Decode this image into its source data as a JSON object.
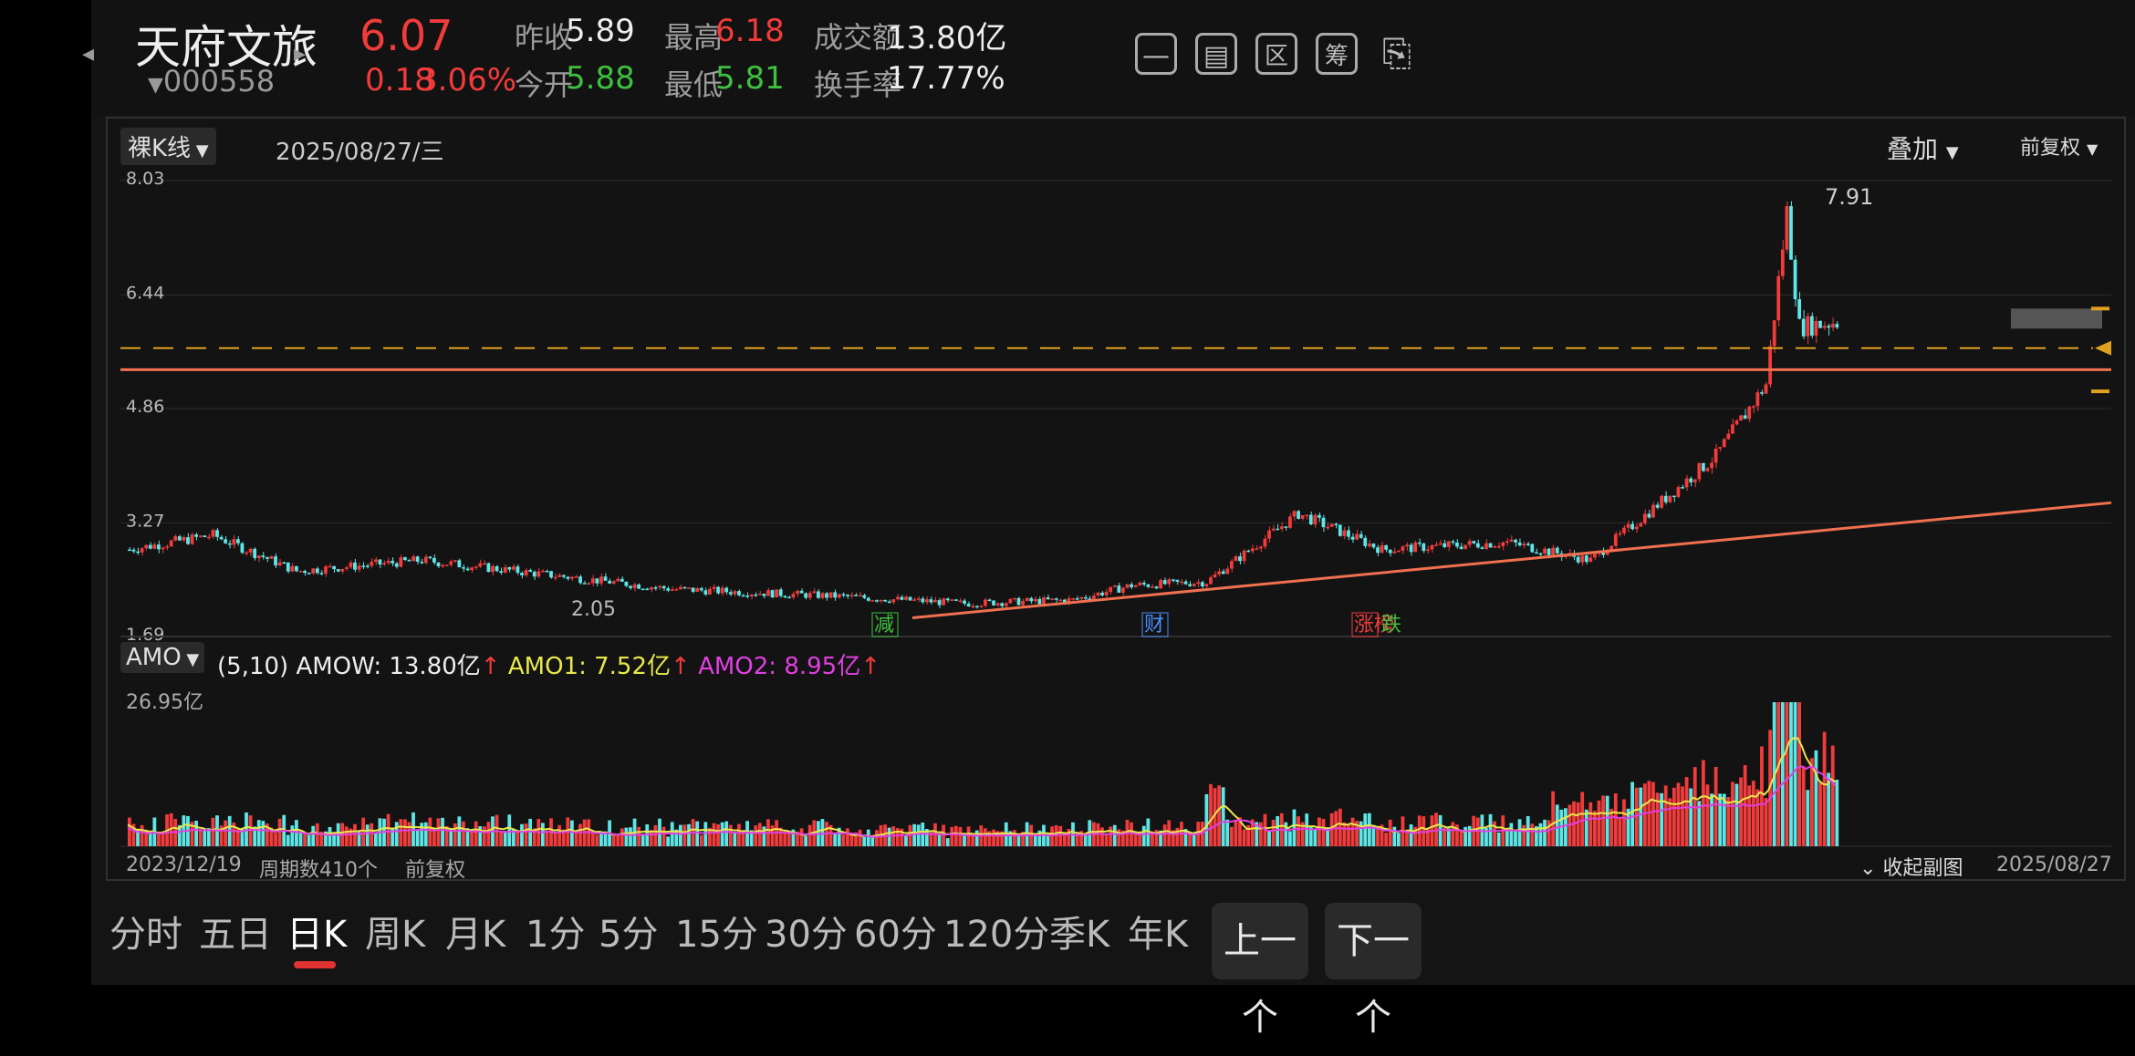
{
  "header": {
    "stock_name": "天府文旅",
    "stock_code": "000558",
    "price": "6.07",
    "change": "0.18",
    "change_pct": "3.06%",
    "prev_close_label": "昨收",
    "prev_close": "5.89",
    "open_label": "今开",
    "open": "5.88",
    "high_label": "最高",
    "high": "6.18",
    "low_label": "最低",
    "low": "5.81",
    "turnover_amount_label": "成交额",
    "turnover_amount": "13.80亿",
    "turnover_rate_label": "换手率",
    "turnover_rate": "17.77%",
    "icons": [
      "minus-square-icon",
      "screen-icon",
      "区",
      "筹",
      "device-rotate-icon"
    ],
    "icon_labels": {
      "qu": "区",
      "chou": "筹"
    }
  },
  "chart": {
    "kline_type": "裸K线",
    "date": "2025/08/27/三",
    "overlay": "叠加",
    "adjust": "前复权",
    "price_ticks": [
      "8.03",
      "6.44",
      "4.86",
      "3.27",
      "1.69"
    ],
    "max_label": "7.91",
    "min_label": "2.05",
    "markers": {
      "jian": "减",
      "cai": "财",
      "zhangbang": "涨榜",
      "die": "跌"
    },
    "indicator": "AMO",
    "amo_params": "(5,10)",
    "amow": "AMOW: 13.80亿",
    "amo1": "AMO1: 7.52亿",
    "amo2": "AMO2: 8.95亿",
    "up_arrow": "↑",
    "vol_max": "26.95亿",
    "start_date": "2023/12/19",
    "period_count": "周期数410个",
    "footer_adjust": "前复权",
    "collapse": "收起副图",
    "end_date": "2025/08/27",
    "colors": {
      "up": "#f23b3b",
      "down": "#5ee6e6",
      "ma_yellow": "#e8e84a",
      "ma_magenta": "#e040e0",
      "trend": "#f07050",
      "dashed": "#e0a020"
    }
  },
  "chart_data": {
    "type": "candlestick",
    "ylim": [
      1.69,
      8.03
    ],
    "x_range": [
      "2023/12/19",
      "2025/08/27"
    ],
    "last_close": 6.07,
    "period_high": 7.91,
    "period_low": 2.05
  },
  "tabs": [
    "分时",
    "五日",
    "日K",
    "周K",
    "月K",
    "1分",
    "5分",
    "15分",
    "30分",
    "60分",
    "120分",
    "季K",
    "年K"
  ],
  "active_tab": "日K",
  "nav": {
    "prev": "上一个",
    "next": "下一个"
  }
}
